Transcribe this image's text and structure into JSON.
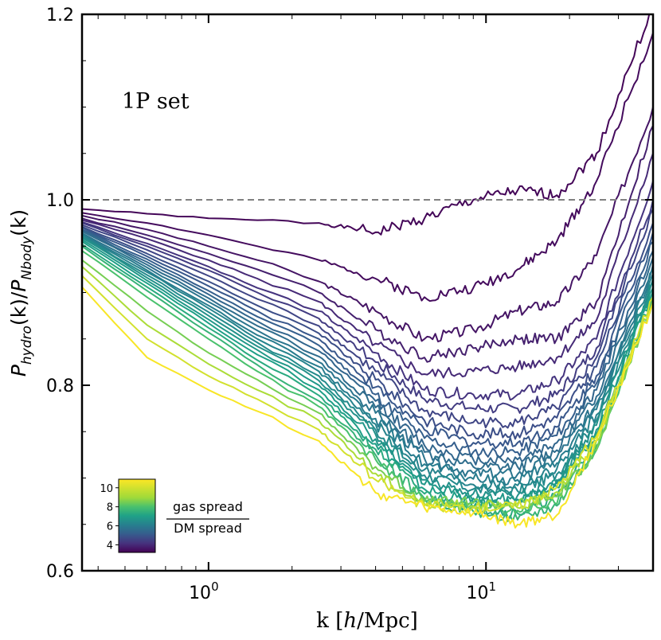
{
  "chart_data": {
    "type": "line",
    "xlabel": "k [h/Mpc]",
    "xlabel_parts": {
      "pre": "k [",
      "italic": "h",
      "post": "/Mpc]"
    },
    "ylabel": "P_hydro(k)/P_Nbody(k)",
    "ylabel_parts": {
      "p1": "P",
      "sub1": "hydro",
      "mid": "(k)/",
      "p2": "P",
      "sub2": "Nbody",
      "end": "(k)"
    },
    "xscale": "log",
    "xlim": [
      0.35,
      40
    ],
    "ylim": [
      0.6,
      1.2
    ],
    "yticks": [
      "0.6",
      "0.8",
      "1.0",
      "1.2"
    ],
    "xticks": [
      {
        "value": 1,
        "base": "10",
        "exp": "0"
      },
      {
        "value": 10,
        "base": "10",
        "exp": "1"
      }
    ],
    "reference_line": {
      "y": 1.0,
      "style": "dashed",
      "color": "#808080"
    },
    "annotation": "1P set",
    "colorbar": {
      "label_numerator": "gas spread",
      "label_denominator": "DM spread",
      "range": [
        3.2,
        10.9
      ],
      "ticks": [
        "4",
        "6",
        "8",
        "10"
      ],
      "colormap": "viridis",
      "location": "lower-left"
    },
    "series": [
      {
        "spread": 3.3,
        "values": [
          0.99,
          0.985,
          0.98,
          0.978,
          0.975,
          0.965,
          0.98,
          1.0,
          1.01,
          1.005,
          1.05,
          1.21
        ]
      },
      {
        "spread": 3.4,
        "values": [
          0.986,
          0.975,
          0.962,
          0.95,
          0.935,
          0.915,
          0.895,
          0.905,
          0.925,
          0.955,
          1.02,
          1.18
        ]
      },
      {
        "spread": 3.6,
        "values": [
          0.983,
          0.968,
          0.95,
          0.935,
          0.912,
          0.88,
          0.85,
          0.86,
          0.88,
          0.89,
          0.94,
          1.1
        ]
      },
      {
        "spread": 3.8,
        "values": [
          0.98,
          0.962,
          0.942,
          0.925,
          0.9,
          0.86,
          0.83,
          0.84,
          0.85,
          0.85,
          0.89,
          1.08
        ]
      },
      {
        "spread": 4.0,
        "values": [
          0.978,
          0.958,
          0.935,
          0.915,
          0.89,
          0.845,
          0.812,
          0.815,
          0.82,
          0.83,
          0.87,
          1.05
        ]
      },
      {
        "spread": 4.2,
        "values": [
          0.976,
          0.953,
          0.928,
          0.905,
          0.88,
          0.835,
          0.795,
          0.79,
          0.79,
          0.805,
          0.85,
          1.02
        ]
      },
      {
        "spread": 4.4,
        "values": [
          0.975,
          0.95,
          0.924,
          0.9,
          0.872,
          0.825,
          0.785,
          0.775,
          0.775,
          0.79,
          0.84,
          1.0
        ]
      },
      {
        "spread": 4.6,
        "values": [
          0.973,
          0.946,
          0.918,
          0.893,
          0.864,
          0.815,
          0.772,
          0.76,
          0.76,
          0.775,
          0.83,
          0.99
        ]
      },
      {
        "spread": 4.8,
        "values": [
          0.971,
          0.942,
          0.912,
          0.886,
          0.856,
          0.806,
          0.762,
          0.748,
          0.748,
          0.765,
          0.82,
          0.975
        ]
      },
      {
        "spread": 5.0,
        "values": [
          0.97,
          0.939,
          0.907,
          0.88,
          0.85,
          0.798,
          0.752,
          0.738,
          0.738,
          0.755,
          0.81,
          0.965
        ]
      },
      {
        "spread": 5.2,
        "values": [
          0.968,
          0.936,
          0.902,
          0.874,
          0.843,
          0.79,
          0.743,
          0.728,
          0.728,
          0.746,
          0.802,
          0.955
        ]
      },
      {
        "spread": 5.4,
        "values": [
          0.967,
          0.933,
          0.898,
          0.869,
          0.837,
          0.783,
          0.735,
          0.72,
          0.72,
          0.738,
          0.795,
          0.945
        ]
      },
      {
        "spread": 5.6,
        "values": [
          0.966,
          0.93,
          0.894,
          0.864,
          0.831,
          0.776,
          0.728,
          0.712,
          0.712,
          0.73,
          0.788,
          0.938
        ]
      },
      {
        "spread": 5.8,
        "values": [
          0.964,
          0.927,
          0.89,
          0.859,
          0.825,
          0.77,
          0.721,
          0.705,
          0.704,
          0.722,
          0.78,
          0.93
        ]
      },
      {
        "spread": 6.0,
        "values": [
          0.963,
          0.924,
          0.886,
          0.854,
          0.82,
          0.764,
          0.715,
          0.699,
          0.698,
          0.716,
          0.774,
          0.925
        ]
      },
      {
        "spread": 6.2,
        "values": [
          0.962,
          0.922,
          0.883,
          0.85,
          0.815,
          0.758,
          0.709,
          0.693,
          0.692,
          0.71,
          0.768,
          0.92
        ]
      },
      {
        "spread": 6.4,
        "values": [
          0.96,
          0.919,
          0.879,
          0.846,
          0.81,
          0.752,
          0.703,
          0.688,
          0.686,
          0.704,
          0.762,
          0.915
        ]
      },
      {
        "spread": 6.6,
        "values": [
          0.959,
          0.916,
          0.875,
          0.842,
          0.805,
          0.747,
          0.698,
          0.683,
          0.681,
          0.698,
          0.757,
          0.91
        ]
      },
      {
        "spread": 6.8,
        "values": [
          0.957,
          0.913,
          0.871,
          0.838,
          0.8,
          0.742,
          0.693,
          0.678,
          0.677,
          0.694,
          0.752,
          0.905
        ]
      },
      {
        "spread": 7.0,
        "values": [
          0.955,
          0.91,
          0.867,
          0.833,
          0.795,
          0.737,
          0.688,
          0.674,
          0.672,
          0.69,
          0.747,
          0.902
        ]
      },
      {
        "spread": 7.3,
        "values": [
          0.952,
          0.906,
          0.862,
          0.827,
          0.789,
          0.731,
          0.683,
          0.668,
          0.662,
          0.68,
          0.74,
          0.897
        ]
      },
      {
        "spread": 7.6,
        "values": [
          0.95,
          0.902,
          0.857,
          0.822,
          0.783,
          0.725,
          0.678,
          0.664,
          0.655,
          0.67,
          0.735,
          0.892
        ]
      },
      {
        "spread": 8.0,
        "values": [
          0.945,
          0.895,
          0.85,
          0.815,
          0.777,
          0.72,
          0.675,
          0.668,
          0.665,
          0.672,
          0.73,
          0.89
        ]
      },
      {
        "spread": 8.5,
        "values": [
          0.935,
          0.88,
          0.835,
          0.806,
          0.77,
          0.712,
          0.675,
          0.673,
          0.672,
          0.68,
          0.73,
          0.89
        ]
      },
      {
        "spread": 9.2,
        "values": [
          0.928,
          0.865,
          0.823,
          0.795,
          0.762,
          0.705,
          0.672,
          0.67,
          0.668,
          0.685,
          0.74,
          0.892
        ]
      },
      {
        "spread": 10.0,
        "values": [
          0.918,
          0.85,
          0.81,
          0.785,
          0.752,
          0.698,
          0.67,
          0.668,
          0.67,
          0.69,
          0.745,
          0.895
        ]
      },
      {
        "spread": 10.8,
        "values": [
          0.906,
          0.83,
          0.795,
          0.772,
          0.74,
          0.684,
          0.668,
          0.662,
          0.65,
          0.66,
          0.74,
          0.888
        ]
      }
    ],
    "x": [
      0.35,
      0.6,
      1.0,
      1.5,
      2.5,
      4.0,
      6.0,
      9.0,
      13.0,
      18.0,
      25.0,
      40.0
    ]
  }
}
